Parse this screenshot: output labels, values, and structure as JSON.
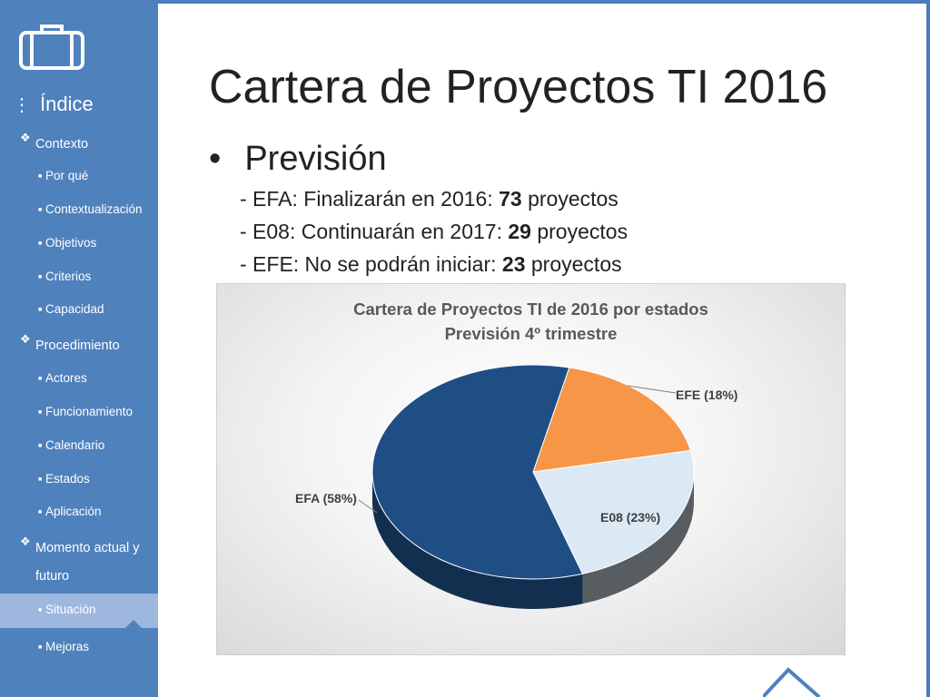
{
  "sidebar": {
    "index_title": "Índice",
    "items": [
      {
        "level": "section",
        "label": "Contexto"
      },
      {
        "level": "sub",
        "label": "Por qué"
      },
      {
        "level": "sub",
        "label": "Contextualización"
      },
      {
        "level": "sub",
        "label": "Objetivos"
      },
      {
        "level": "sub",
        "label": "Criterios"
      },
      {
        "level": "sub",
        "label": "Capacidad"
      },
      {
        "level": "section",
        "label": "Procedimiento"
      },
      {
        "level": "sub",
        "label": "Actores"
      },
      {
        "level": "sub",
        "label": "Funcionamiento"
      },
      {
        "level": "sub",
        "label": "Calendario"
      },
      {
        "level": "sub",
        "label": "Estados"
      },
      {
        "level": "sub",
        "label": "Aplicación"
      },
      {
        "level": "section",
        "label": "Momento actual y",
        "label2": "futuro"
      },
      {
        "level": "sub",
        "label": "Situación",
        "active": true
      },
      {
        "level": "sub",
        "label": "Mejoras"
      }
    ],
    "colors": {
      "background": "#4f81bd",
      "active": "#9db7df",
      "text": "#ffffff"
    }
  },
  "slide": {
    "title": "Cartera de Proyectos TI 2016",
    "bullet": "Previsión",
    "lines": [
      {
        "prefix": "- EFA: Finalizarán en 2016: ",
        "value": "73",
        "suffix": " proyectos"
      },
      {
        "prefix": "- E08: Continuarán en 2017: ",
        "value": "29",
        "suffix": " proyectos"
      },
      {
        "prefix": "- EFE: No se podrán iniciar: ",
        "value": "23",
        "suffix": " proyectos"
      }
    ]
  },
  "chart_data": {
    "type": "pie",
    "title": "Cartera de Proyectos TI de 2016 por estados",
    "subtitle": "Previsión 4º trimestre",
    "slices": [
      {
        "name": "EFA",
        "value": 58,
        "label": "EFA (58%)",
        "color": "#1f4e85"
      },
      {
        "name": "EFE",
        "value": 18,
        "label": "EFE (18%)",
        "color": "#f79646"
      },
      {
        "name": "E08",
        "value": 23,
        "label": "E08 (23%)",
        "color": "#dbe9f4"
      }
    ]
  }
}
